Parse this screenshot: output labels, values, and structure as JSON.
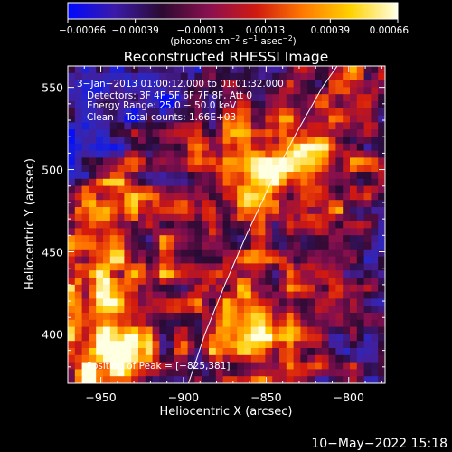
{
  "chart_data": {
    "type": "heatmap",
    "title": "Reconstructed RHESSI Image",
    "xlabel": "Heliocentric X (arcsec)",
    "ylabel": "Heliocentric Y (arcsec)",
    "xlim": [
      -970,
      -778
    ],
    "ylim": [
      370,
      563
    ],
    "x_ticks": [
      -950,
      -900,
      -850,
      -800
    ],
    "x_tick_labels": [
      "−950",
      "−900",
      "−850",
      "−800"
    ],
    "y_ticks": [
      400,
      450,
      500,
      550
    ],
    "y_tick_labels": [
      "400",
      "450",
      "500",
      "550"
    ],
    "colorbar": {
      "range": [
        -0.00066,
        0.00066
      ],
      "ticks": [
        -0.00066,
        -0.00039,
        -0.00013,
        0.00013,
        0.00039,
        0.00066
      ],
      "tick_labels": [
        "−0.00066",
        "−0.00039",
        "−0.00013",
        "0.00013",
        "0.00039",
        "0.00066"
      ],
      "colormap": [
        "#0008ff",
        "#3b1aa8",
        "#2b0a30",
        "#8a1050",
        "#d01a10",
        "#ff7a00",
        "#ffd200",
        "#ffffe8"
      ],
      "label_main": "(photons cm",
      "sup1": "−2",
      "label_mid": " s",
      "sup2": "−1",
      "label_tail": " asec",
      "sup3": "−2",
      "label_end": ")"
    },
    "annotations": {
      "time_range": "3−Jan−2013 01:00:12.000 to 01:01:32.000",
      "detectors": "Detectors: 3F 4F 5F 6F 7F 8F, Att 0",
      "energy_range": "Energy Range: 25.0 − 50.0 keV",
      "algorithm": "Clean    Total counts: 1.66E+03",
      "peak_position": "Position of Peak = [−825,381]"
    },
    "limb_points": [
      [
        -897,
        370
      ],
      [
        -887,
        400
      ],
      [
        -875,
        430
      ],
      [
        -862,
        460
      ],
      [
        -848,
        490
      ],
      [
        -833,
        520
      ],
      [
        -816,
        550
      ],
      [
        -807,
        563
      ]
    ],
    "peak": [
      -825,
      381
    ],
    "footer_date": "10−May−2022 15:18"
  }
}
